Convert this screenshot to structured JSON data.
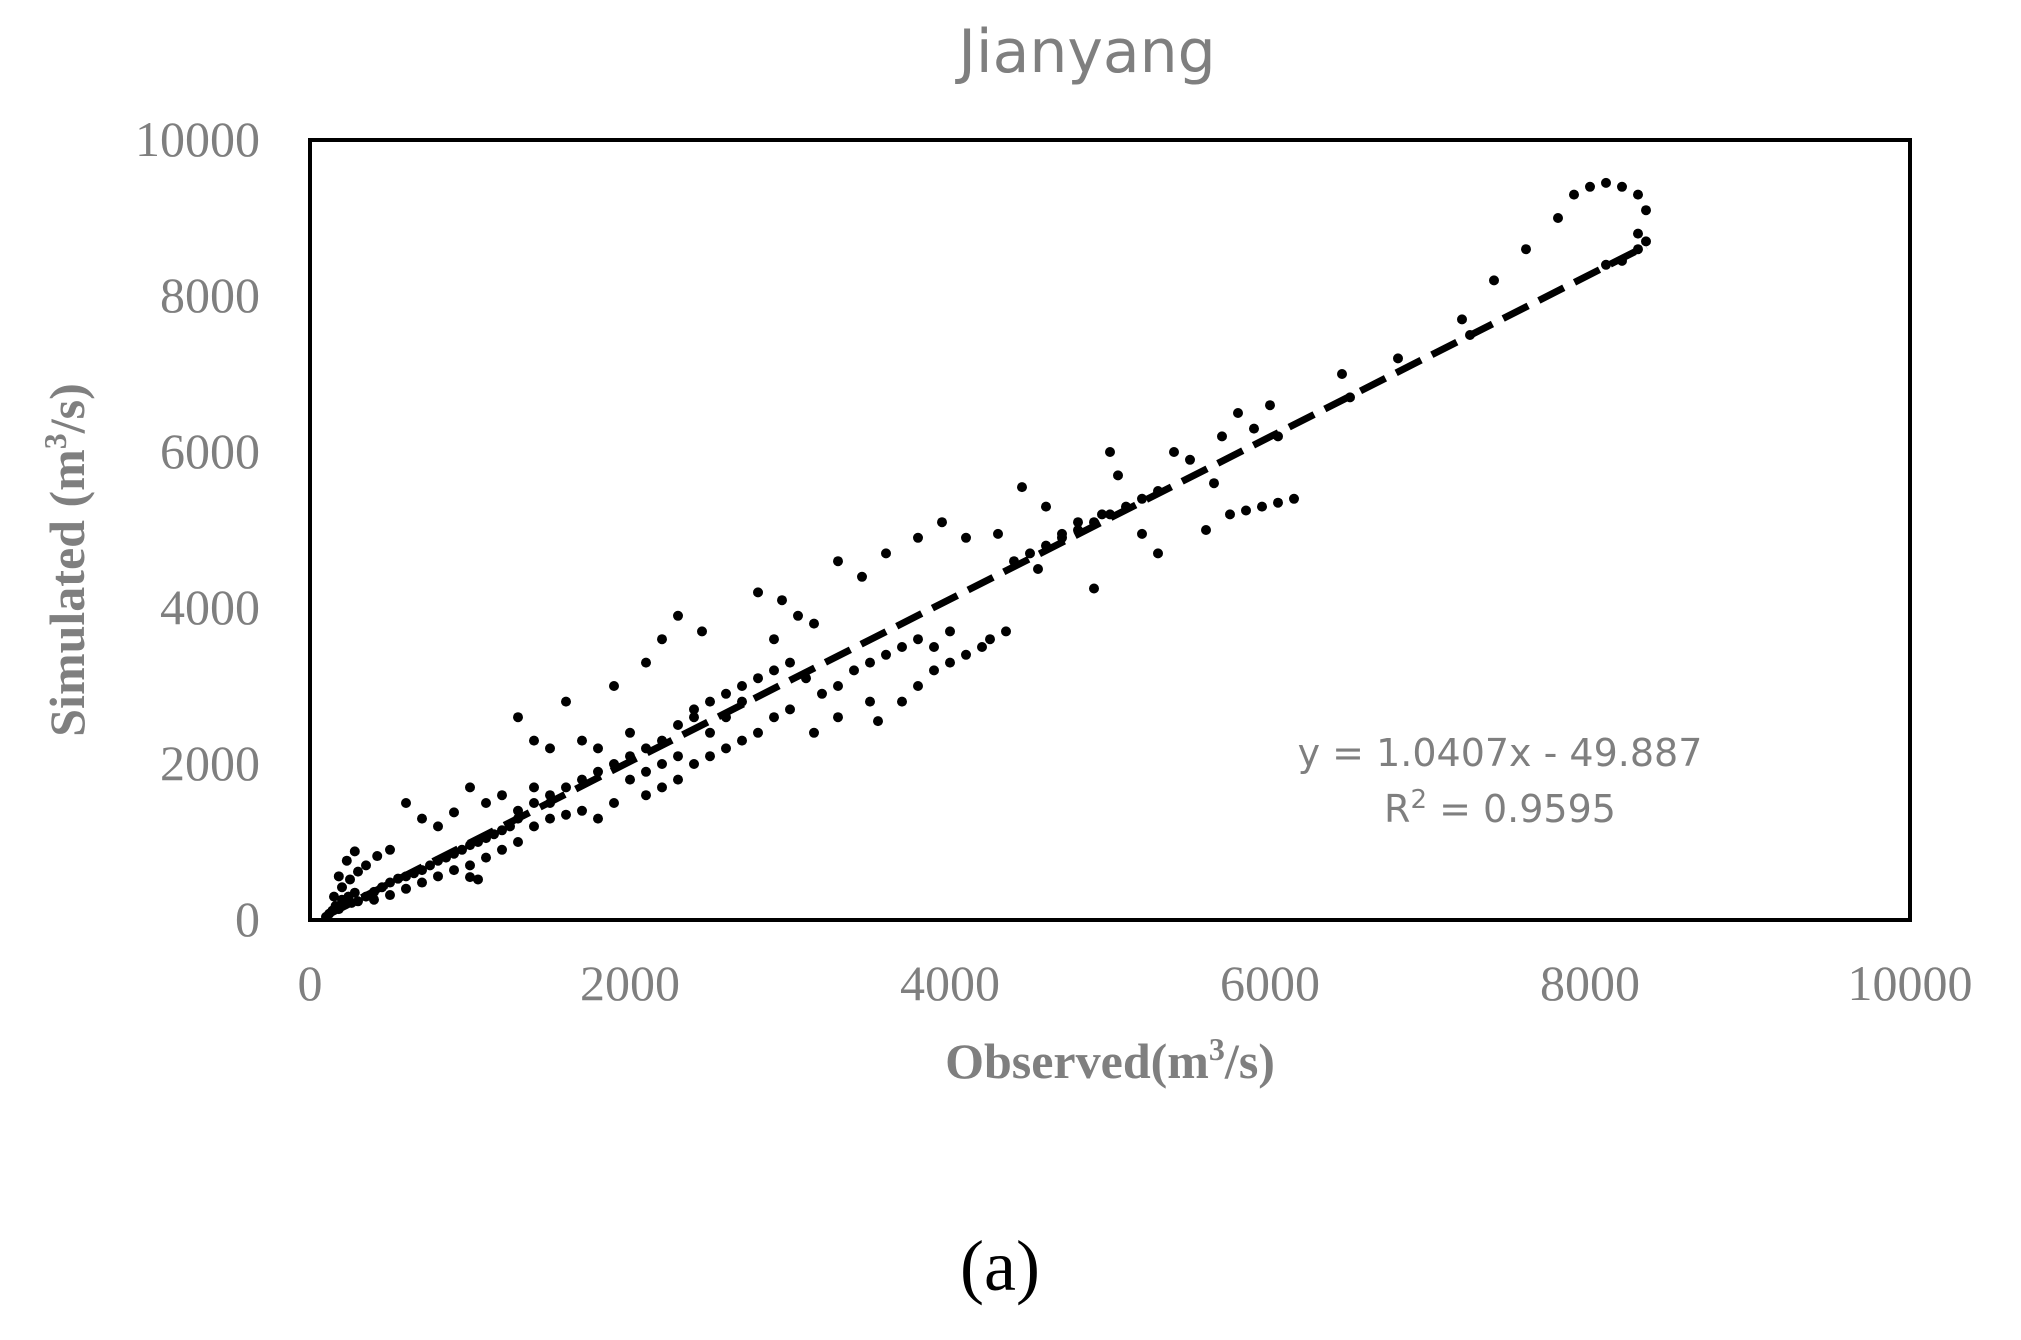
{
  "panel_label": "(a)",
  "chart_data": {
    "type": "scatter",
    "title": "Jianyang",
    "xlabel": {
      "base": "Observed(m",
      "sup": "3",
      "tail": "/s)"
    },
    "ylabel": {
      "base": "Simulated (m",
      "sup": "3",
      "tail": "/s)"
    },
    "xlim": [
      0,
      10000
    ],
    "ylim": [
      0,
      10000
    ],
    "xticks": [
      "0",
      "2000",
      "4000",
      "6000",
      "8000",
      "10000"
    ],
    "yticks": [
      "0",
      "2000",
      "4000",
      "6000",
      "8000",
      "10000"
    ],
    "grid": false,
    "legend": "none",
    "trendline": {
      "type": "linear",
      "slope": 1.0407,
      "intercept": -49.887,
      "x_range": [
        100,
        8350
      ],
      "style": "dashed",
      "equation_text": "y = 1.0407x - 49.887",
      "r2_text": {
        "base": "R",
        "sup": "2",
        "tail": " = 0.9595"
      }
    },
    "marker_color": "#000000",
    "points": [
      [
        100,
        40
      ],
      [
        120,
        80
      ],
      [
        140,
        120
      ],
      [
        160,
        180
      ],
      [
        180,
        140
      ],
      [
        200,
        260
      ],
      [
        220,
        200
      ],
      [
        240,
        300
      ],
      [
        260,
        220
      ],
      [
        280,
        350
      ],
      [
        150,
        300
      ],
      [
        200,
        420
      ],
      [
        250,
        520
      ],
      [
        300,
        620
      ],
      [
        180,
        560
      ],
      [
        230,
        760
      ],
      [
        280,
        880
      ],
      [
        350,
        700
      ],
      [
        420,
        820
      ],
      [
        500,
        900
      ],
      [
        300,
        240
      ],
      [
        350,
        300
      ],
      [
        400,
        360
      ],
      [
        450,
        420
      ],
      [
        500,
        480
      ],
      [
        550,
        530
      ],
      [
        600,
        560
      ],
      [
        650,
        600
      ],
      [
        700,
        640
      ],
      [
        750,
        700
      ],
      [
        800,
        760
      ],
      [
        850,
        800
      ],
      [
        900,
        850
      ],
      [
        950,
        900
      ],
      [
        1000,
        960
      ],
      [
        1050,
        1000
      ],
      [
        1100,
        1050
      ],
      [
        1150,
        1100
      ],
      [
        1200,
        1150
      ],
      [
        1250,
        1200
      ],
      [
        400,
        260
      ],
      [
        500,
        320
      ],
      [
        600,
        400
      ],
      [
        700,
        480
      ],
      [
        800,
        560
      ],
      [
        900,
        640
      ],
      [
        1000,
        700
      ],
      [
        1100,
        800
      ],
      [
        1200,
        900
      ],
      [
        1300,
        1000
      ],
      [
        600,
        1500
      ],
      [
        700,
        1300
      ],
      [
        800,
        1200
      ],
      [
        900,
        1380
      ],
      [
        1000,
        1700
      ],
      [
        1100,
        1500
      ],
      [
        1200,
        1600
      ],
      [
        1300,
        1400
      ],
      [
        1400,
        1700
      ],
      [
        1500,
        1500
      ],
      [
        1000,
        550
      ],
      [
        1050,
        520
      ],
      [
        1300,
        2600
      ],
      [
        1400,
        2300
      ],
      [
        1500,
        2200
      ],
      [
        1600,
        2800
      ],
      [
        1700,
        2300
      ],
      [
        1800,
        2200
      ],
      [
        1900,
        3000
      ],
      [
        2000,
        2400
      ],
      [
        1400,
        1200
      ],
      [
        1500,
        1300
      ],
      [
        1600,
        1350
      ],
      [
        1700,
        1400
      ],
      [
        1800,
        1300
      ],
      [
        1900,
        1500
      ],
      [
        2000,
        1800
      ],
      [
        2100,
        1900
      ],
      [
        2200,
        2000
      ],
      [
        2300,
        2100
      ],
      [
        1300,
        1300
      ],
      [
        1400,
        1500
      ],
      [
        1500,
        1600
      ],
      [
        1600,
        1700
      ],
      [
        1700,
        1800
      ],
      [
        1800,
        1900
      ],
      [
        1900,
        2000
      ],
      [
        2000,
        2100
      ],
      [
        2100,
        2200
      ],
      [
        2200,
        2300
      ],
      [
        2100,
        3300
      ],
      [
        2200,
        3600
      ],
      [
        2300,
        3900
      ],
      [
        2400,
        2600
      ],
      [
        2450,
        3700
      ],
      [
        2500,
        2400
      ],
      [
        2600,
        2600
      ],
      [
        2700,
        2800
      ],
      [
        2800,
        4200
      ],
      [
        2900,
        3600
      ],
      [
        2100,
        1600
      ],
      [
        2200,
        1700
      ],
      [
        2300,
        1800
      ],
      [
        2400,
        2000
      ],
      [
        2500,
        2100
      ],
      [
        2600,
        2200
      ],
      [
        2700,
        2300
      ],
      [
        2800,
        2400
      ],
      [
        2900,
        2600
      ],
      [
        3000,
        2700
      ],
      [
        2300,
        2500
      ],
      [
        2400,
        2700
      ],
      [
        2500,
        2800
      ],
      [
        2600,
        2900
      ],
      [
        2700,
        3000
      ],
      [
        2800,
        3100
      ],
      [
        2900,
        3200
      ],
      [
        3000,
        3300
      ],
      [
        3100,
        3100
      ],
      [
        3200,
        2900
      ],
      [
        2950,
        4100
      ],
      [
        3050,
        3900
      ],
      [
        3150,
        3800
      ],
      [
        3300,
        4600
      ],
      [
        3450,
        4400
      ],
      [
        3600,
        4700
      ],
      [
        3800,
        4900
      ],
      [
        3950,
        5100
      ],
      [
        4100,
        4900
      ],
      [
        4300,
        4950
      ],
      [
        3150,
        2400
      ],
      [
        3300,
        2600
      ],
      [
        3500,
        2800
      ],
      [
        3550,
        2550
      ],
      [
        3700,
        2800
      ],
      [
        3800,
        3000
      ],
      [
        3900,
        3200
      ],
      [
        4000,
        3300
      ],
      [
        4100,
        3400
      ],
      [
        4200,
        3500
      ],
      [
        3300,
        3000
      ],
      [
        3400,
        3200
      ],
      [
        3500,
        3300
      ],
      [
        3600,
        3400
      ],
      [
        3700,
        3500
      ],
      [
        3800,
        3600
      ],
      [
        3900,
        3500
      ],
      [
        4000,
        3700
      ],
      [
        4250,
        3600
      ],
      [
        4350,
        3700
      ],
      [
        4450,
        5550
      ],
      [
        4550,
        4500
      ],
      [
        4600,
        5300
      ],
      [
        4700,
        4950
      ],
      [
        4800,
        5100
      ],
      [
        4900,
        4250
      ],
      [
        4950,
        5200
      ],
      [
        5000,
        6000
      ],
      [
        5050,
        5700
      ],
      [
        5200,
        4950
      ],
      [
        4400,
        4600
      ],
      [
        4500,
        4700
      ],
      [
        4600,
        4800
      ],
      [
        4700,
        4900
      ],
      [
        4800,
        5000
      ],
      [
        4900,
        5100
      ],
      [
        5000,
        5200
      ],
      [
        5100,
        5300
      ],
      [
        5200,
        5400
      ],
      [
        5300,
        5500
      ],
      [
        5300,
        4700
      ],
      [
        5400,
        6000
      ],
      [
        5500,
        5900
      ],
      [
        5600,
        5000
      ],
      [
        5650,
        5600
      ],
      [
        5700,
        6200
      ],
      [
        5800,
        6500
      ],
      [
        5900,
        6300
      ],
      [
        6000,
        6600
      ],
      [
        6050,
        6200
      ],
      [
        5750,
        5200
      ],
      [
        5850,
        5250
      ],
      [
        5950,
        5300
      ],
      [
        6050,
        5350
      ],
      [
        6150,
        5400
      ],
      [
        6450,
        7000
      ],
      [
        6500,
        6700
      ],
      [
        6800,
        7200
      ],
      [
        7200,
        7700
      ],
      [
        7250,
        7500
      ],
      [
        7400,
        8200
      ],
      [
        7600,
        8600
      ],
      [
        7800,
        9000
      ],
      [
        7900,
        9300
      ],
      [
        8000,
        9400
      ],
      [
        8100,
        9450
      ],
      [
        8200,
        9400
      ],
      [
        8300,
        9300
      ],
      [
        8350,
        9100
      ],
      [
        8300,
        8800
      ],
      [
        8100,
        8400
      ],
      [
        8200,
        8450
      ],
      [
        8300,
        8600
      ],
      [
        8350,
        8700
      ]
    ]
  }
}
